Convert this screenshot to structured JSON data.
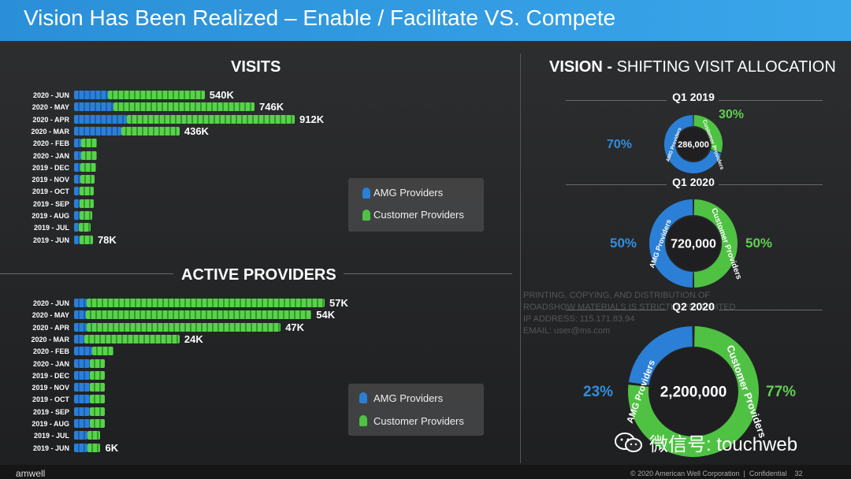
{
  "header": {
    "title": "Vision Has Been Realized – Enable / Facilitate VS. Compete"
  },
  "visits": {
    "title": "VISITS",
    "rows": [
      {
        "label": "2020 - JUN",
        "value_text": "540K",
        "amg": 0.26,
        "cust": 0.74
      },
      {
        "label": "2020 - MAY",
        "value_text": "746K",
        "amg": 0.22,
        "cust": 0.78
      },
      {
        "label": "2020 - APR",
        "value_text": "912K",
        "amg": 0.24,
        "cust": 0.76
      },
      {
        "label": "2020 - MAR",
        "value_text": "436K",
        "amg": 0.45,
        "cust": 0.55
      },
      {
        "label": "2020 - FEB",
        "value_text": "",
        "amg": 0.3,
        "cust": 0.7
      },
      {
        "label": "2020 - JAN",
        "value_text": "",
        "amg": 0.3,
        "cust": 0.7
      },
      {
        "label": "2019 - DEC",
        "value_text": "",
        "amg": 0.3,
        "cust": 0.7
      },
      {
        "label": "2019 - NOV",
        "value_text": "",
        "amg": 0.3,
        "cust": 0.7
      },
      {
        "label": "2019 - OCT",
        "value_text": "",
        "amg": 0.3,
        "cust": 0.7
      },
      {
        "label": "2019 - SEP",
        "value_text": "",
        "amg": 0.3,
        "cust": 0.7
      },
      {
        "label": "2019 - AUG",
        "value_text": "",
        "amg": 0.3,
        "cust": 0.7
      },
      {
        "label": "2019 - JUL",
        "value_text": "",
        "amg": 0.3,
        "cust": 0.7
      },
      {
        "label": "2019 - JUN",
        "value_text": "78K",
        "amg": 0.3,
        "cust": 0.7
      }
    ],
    "approx_values_k": [
      540,
      746,
      912,
      436,
      95,
      95,
      92,
      86,
      80,
      80,
      74,
      70,
      78
    ],
    "legend": {
      "amg": "AMG Providers",
      "customer": "Customer Providers"
    }
  },
  "active_providers": {
    "title": "ACTIVE PROVIDERS",
    "rows": [
      {
        "label": "2020 - JUN",
        "value_text": "57K",
        "amg": 0.05
      },
      {
        "label": "2020 - MAY",
        "value_text": "54K",
        "amg": 0.05
      },
      {
        "label": "2020 - APR",
        "value_text": "47K",
        "amg": 0.06
      },
      {
        "label": "2020 - MAR",
        "value_text": "24K",
        "amg": 0.1
      },
      {
        "label": "2020 - FEB",
        "value_text": "",
        "amg": 0.45
      },
      {
        "label": "2020 - JAN",
        "value_text": "",
        "amg": 0.5
      },
      {
        "label": "2019 - DEC",
        "value_text": "",
        "amg": 0.5
      },
      {
        "label": "2019 - NOV",
        "value_text": "",
        "amg": 0.5
      },
      {
        "label": "2019 - OCT",
        "value_text": "",
        "amg": 0.5
      },
      {
        "label": "2019 - SEP",
        "value_text": "",
        "amg": 0.5
      },
      {
        "label": "2019 - AUG",
        "value_text": "",
        "amg": 0.5
      },
      {
        "label": "2019 - JUL",
        "value_text": "",
        "amg": 0.5
      },
      {
        "label": "2019 - JUN",
        "value_text": "6K",
        "amg": 0.5
      }
    ],
    "approx_values_k": [
      57,
      54,
      47,
      24,
      9,
      7,
      7,
      7,
      7,
      7,
      7,
      6,
      6
    ],
    "legend": {
      "amg": "AMG Providers",
      "customer": "Customer Providers"
    }
  },
  "vision": {
    "title_bold": "VISION -",
    "title_rest": " SHIFTING VISIT ALLOCATION",
    "donuts": [
      {
        "quarter": "Q1 2019",
        "center": "286,000",
        "amg_pct_text": "70%",
        "cust_pct_text": "30%",
        "amg_frac": 0.7,
        "amg_label": "AMG Providers",
        "cust_label": "Customer Providers"
      },
      {
        "quarter": "Q1 2020",
        "center": "720,000",
        "amg_pct_text": "50%",
        "cust_pct_text": "50%",
        "amg_frac": 0.5,
        "amg_label": "AMG Providers",
        "cust_label": "Customer Providers"
      },
      {
        "quarter": "Q2 2020",
        "center": "2,200,000",
        "amg_pct_text": "23%",
        "cust_pct_text": "77%",
        "amg_frac": 0.23,
        "amg_label": "AMG Providers",
        "cust_label": "Customer Providers"
      }
    ]
  },
  "colors": {
    "amg": "#2b7fd6",
    "customer": "#4fc243",
    "accent_green": "#5fd14e",
    "accent_blue": "#2e8fe0"
  },
  "footer": {
    "logo": "amwell",
    "copyright": "© 2020  American Well Corporation",
    "confidential": "Confidential",
    "page": "32"
  },
  "watermark": {
    "line1": "PRINTING, COPYING, AND DISTRIBUTION OF",
    "line2": "ROADSHOW MATERIALS IS STRICTLY PROHIBITED",
    "line3": "IP ADDRESS: 115.171.83.94",
    "line4": "EMAIL: user@ms.com"
  },
  "wechat": {
    "text": "微信号: touchweb"
  }
}
